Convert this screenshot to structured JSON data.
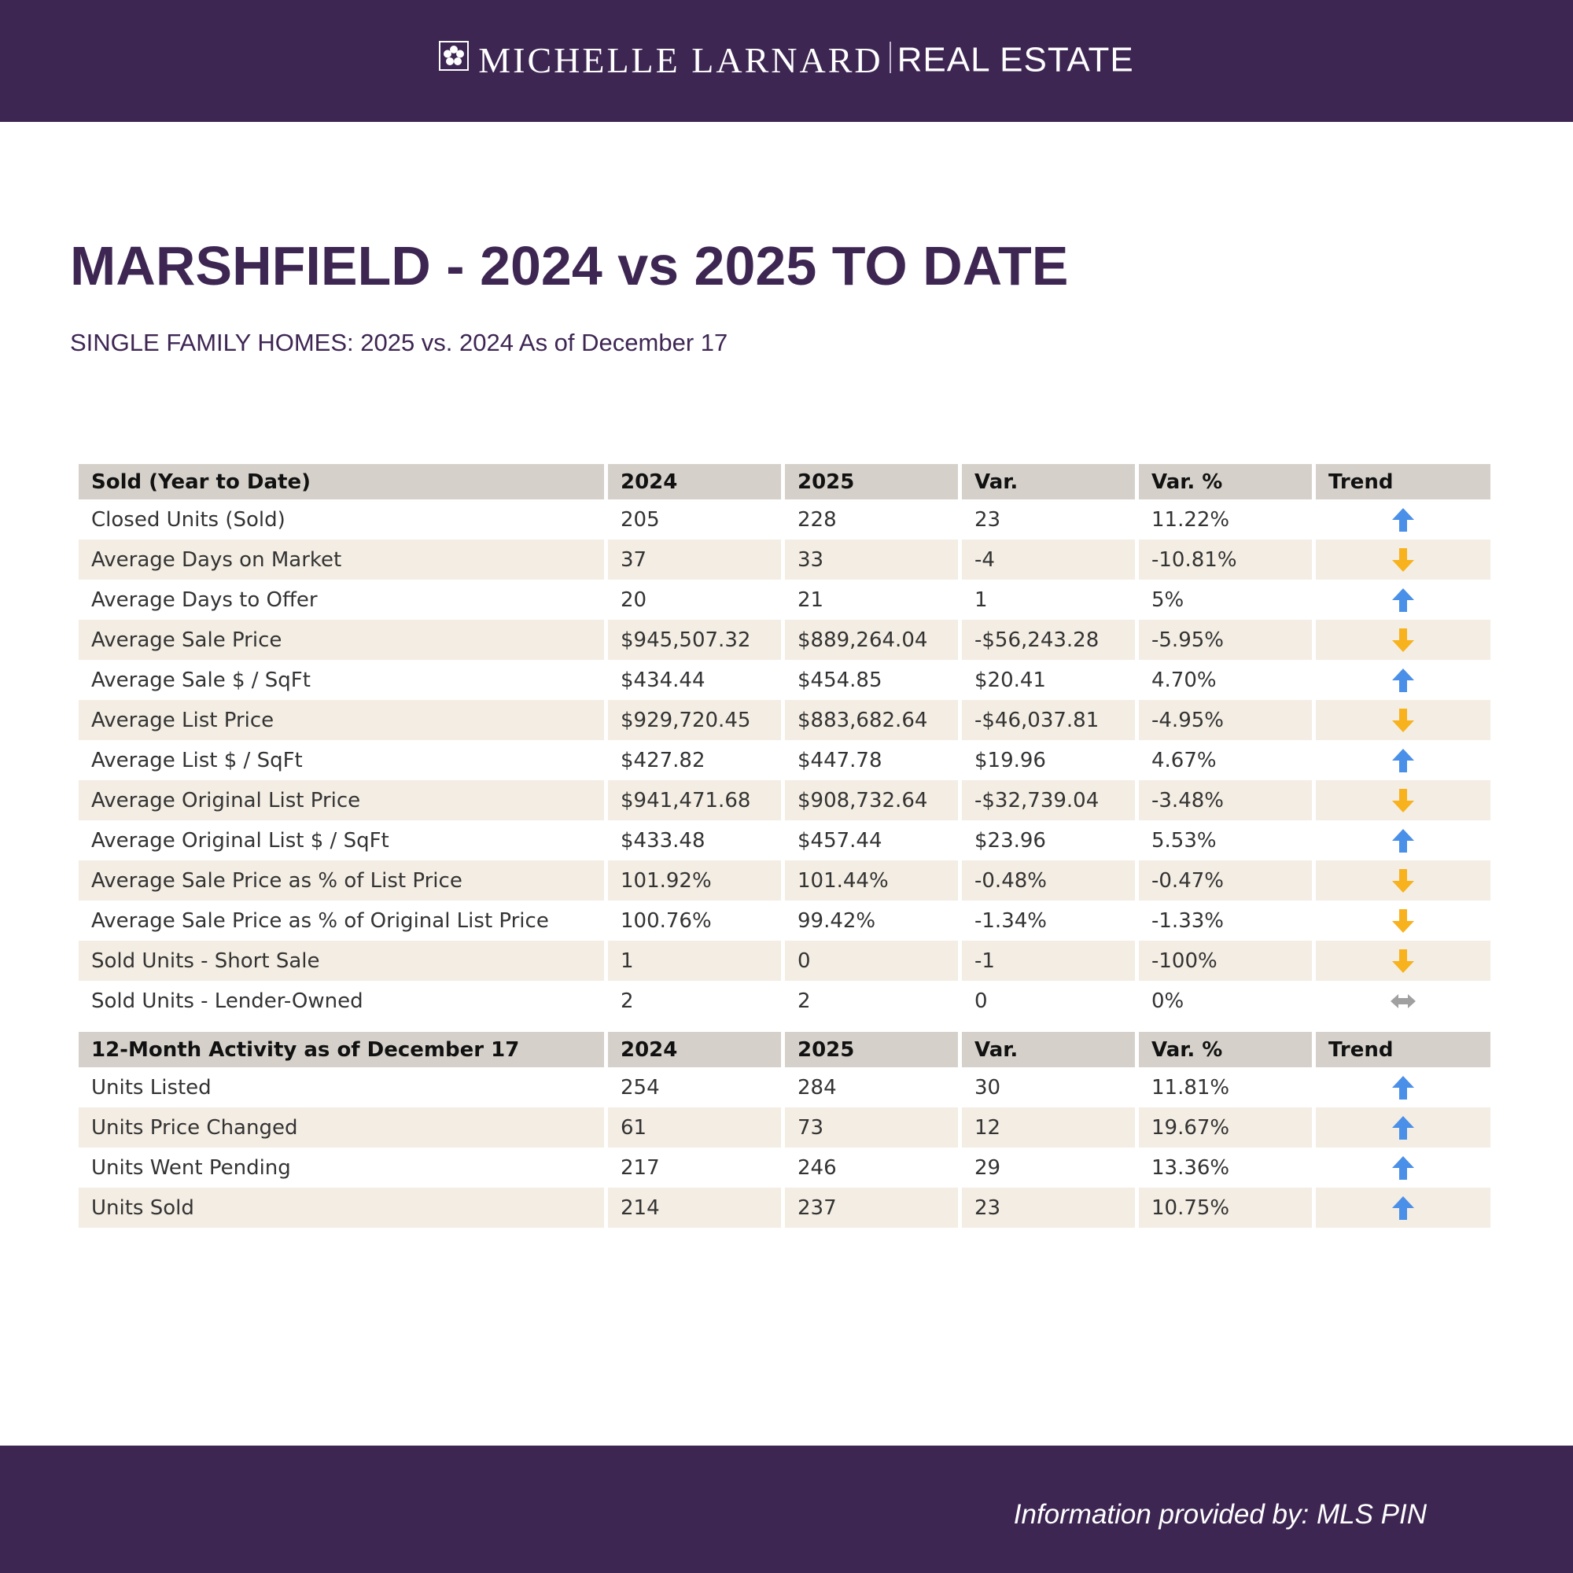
{
  "header": {
    "brand_name": "MICHELLE LARNARD",
    "brand_sub": "REAL ESTATE",
    "background": "#3e2653"
  },
  "title": "MARSHFIELD - 2024 vs 2025 TO DATE",
  "subtitle": "SINGLE FAMILY HOMES: 2025 vs. 2024 As of December 17",
  "colors": {
    "up": "#4a8fe8",
    "down": "#f7b21d",
    "flat": "#a0a0a0",
    "header_row": "#d5d1ca",
    "alt_row": "#f3ede3"
  },
  "tables": [
    {
      "headers": [
        "Sold (Year to Date)",
        "2024",
        "2025",
        "Var.",
        "Var. %",
        "Trend"
      ],
      "rows": [
        {
          "label": "Closed Units (Sold)",
          "y2024": "205",
          "y2025": "228",
          "var": "23",
          "var_pct": "11.22%",
          "trend": "up"
        },
        {
          "label": "Average Days on Market",
          "y2024": "37",
          "y2025": "33",
          "var": "-4",
          "var_pct": "-10.81%",
          "trend": "down"
        },
        {
          "label": "Average Days to Offer",
          "y2024": "20",
          "y2025": "21",
          "var": "1",
          "var_pct": "5%",
          "trend": "up"
        },
        {
          "label": "Average Sale Price",
          "y2024": "$945,507.32",
          "y2025": "$889,264.04",
          "var": "-$56,243.28",
          "var_pct": "-5.95%",
          "trend": "down"
        },
        {
          "label": "Average Sale $ / SqFt",
          "y2024": "$434.44",
          "y2025": "$454.85",
          "var": "$20.41",
          "var_pct": "4.70%",
          "trend": "up"
        },
        {
          "label": "Average List Price",
          "y2024": "$929,720.45",
          "y2025": "$883,682.64",
          "var": "-$46,037.81",
          "var_pct": "-4.95%",
          "trend": "down"
        },
        {
          "label": "Average List $ / SqFt",
          "y2024": "$427.82",
          "y2025": "$447.78",
          "var": "$19.96",
          "var_pct": "4.67%",
          "trend": "up"
        },
        {
          "label": "Average Original List Price",
          "y2024": "$941,471.68",
          "y2025": "$908,732.64",
          "var": "-$32,739.04",
          "var_pct": "-3.48%",
          "trend": "down"
        },
        {
          "label": "Average Original List $ / SqFt",
          "y2024": "$433.48",
          "y2025": "$457.44",
          "var": "$23.96",
          "var_pct": "5.53%",
          "trend": "up"
        },
        {
          "label": "Average Sale Price as % of List Price",
          "y2024": "101.92%",
          "y2025": "101.44%",
          "var": "-0.48%",
          "var_pct": "-0.47%",
          "trend": "down"
        },
        {
          "label": "Average Sale Price as % of Original List Price",
          "y2024": "100.76%",
          "y2025": "99.42%",
          "var": "-1.34%",
          "var_pct": "-1.33%",
          "trend": "down"
        },
        {
          "label": "Sold Units - Short Sale",
          "y2024": "1",
          "y2025": "0",
          "var": "-1",
          "var_pct": "-100%",
          "trend": "down"
        },
        {
          "label": "Sold Units - Lender-Owned",
          "y2024": "2",
          "y2025": "2",
          "var": "0",
          "var_pct": "0%",
          "trend": "flat"
        }
      ]
    },
    {
      "headers": [
        "12-Month Activity as of December 17",
        "2024",
        "2025",
        "Var.",
        "Var. %",
        "Trend"
      ],
      "rows": [
        {
          "label": "Units Listed",
          "y2024": "254",
          "y2025": "284",
          "var": "30",
          "var_pct": "11.81%",
          "trend": "up"
        },
        {
          "label": "Units Price Changed",
          "y2024": "61",
          "y2025": "73",
          "var": "12",
          "var_pct": "19.67%",
          "trend": "up"
        },
        {
          "label": "Units Went Pending",
          "y2024": "217",
          "y2025": "246",
          "var": "29",
          "var_pct": "13.36%",
          "trend": "up"
        },
        {
          "label": "Units Sold",
          "y2024": "214",
          "y2025": "237",
          "var": "23",
          "var_pct": "10.75%",
          "trend": "up"
        }
      ]
    }
  ],
  "footer": {
    "credit": "Information provided by: MLS PIN"
  }
}
